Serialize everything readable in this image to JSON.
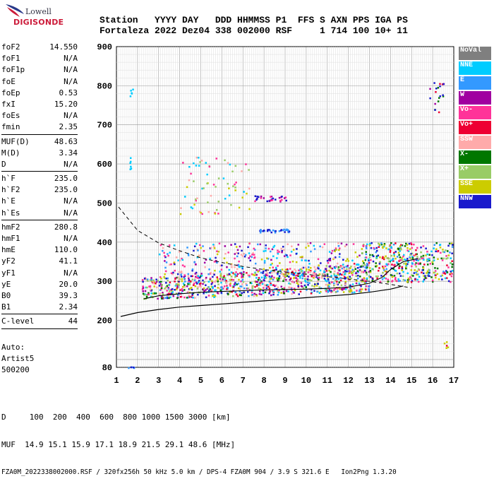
{
  "logo": {
    "line1": "Lowell",
    "line2": "DIGISONDE"
  },
  "header": {
    "labels": "Station   YYYY DAY   DDD HHMMSS P1  FFS S AXN PPS IGA PS",
    "values": "Fortaleza 2022 Dez04 338 002000 RSF     1 714 100 10+ 11"
  },
  "params": [
    {
      "label": "foF2",
      "value": "14.550"
    },
    {
      "label": "foF1",
      "value": "N/A"
    },
    {
      "label": "foF1p",
      "value": "N/A"
    },
    {
      "label": "foE",
      "value": "N/A"
    },
    {
      "label": "foEp",
      "value": "0.53"
    },
    {
      "label": "fxI",
      "value": "15.20"
    },
    {
      "label": "foEs",
      "value": "N/A"
    },
    {
      "label": "fmin",
      "value": "2.35"
    },
    {
      "sep": true
    },
    {
      "label": "MUF(D)",
      "value": "48.63"
    },
    {
      "label": "M(D)",
      "value": "3.34"
    },
    {
      "label": "D",
      "value": "N/A"
    },
    {
      "sep": true
    },
    {
      "label": "h`F",
      "value": "235.0"
    },
    {
      "label": "h`F2",
      "value": "235.0"
    },
    {
      "label": "h`E",
      "value": "N/A"
    },
    {
      "label": "h`Es",
      "value": "N/A"
    },
    {
      "sep": true
    },
    {
      "label": "hmF2",
      "value": "280.8"
    },
    {
      "label": "hmF1",
      "value": "N/A"
    },
    {
      "label": "hmE",
      "value": "110.0"
    },
    {
      "label": "yF2",
      "value": "41.1"
    },
    {
      "label": "yF1",
      "value": "N/A"
    },
    {
      "label": "yE",
      "value": "20.0"
    },
    {
      "label": "B0",
      "value": "39.3"
    },
    {
      "label": "B1",
      "value": "2.34"
    },
    {
      "sep": true
    },
    {
      "label": "C-level",
      "value": "44"
    },
    {
      "sep": true
    }
  ],
  "auto": {
    "line1": "Auto:",
    "line2": "Artist5",
    "line3": "500200"
  },
  "legend": [
    {
      "label": "NoVal",
      "color": "#7f7f7f"
    },
    {
      "label": "NNE",
      "color": "#00ccff"
    },
    {
      "label": "E",
      "color": "#3399ff"
    },
    {
      "label": "W",
      "color": "#a000a0"
    },
    {
      "label": "Vo-",
      "color": "#ff3399"
    },
    {
      "label": "Vo+",
      "color": "#ee0033"
    },
    {
      "label": "SSW",
      "color": "#ffaaaa"
    },
    {
      "label": "X-",
      "color": "#007700"
    },
    {
      "label": "X+",
      "color": "#99cc66"
    },
    {
      "label": "SSE",
      "color": "#cccc00"
    },
    {
      "label": "NNW",
      "color": "#1a1acc"
    }
  ],
  "footer": {
    "line1": "D     100  200  400  600  800 1000 1500 3000 [km]",
    "line2": "MUF  14.9 15.1 15.9 17.1 18.9 21.5 29.1 48.6 [MHz]",
    "line3": "FZA0M_2022338002000.RSF / 320fx256h 50 kHz 5.0 km / DPS-4 FZA0M 904 / 3.9 S 321.6 E   Ion2Png 1.3.20"
  },
  "chart_data": {
    "type": "scatter",
    "xlim": [
      1,
      17
    ],
    "ylim": [
      80,
      900
    ],
    "xticks": [
      1,
      2,
      3,
      4,
      5,
      6,
      7,
      8,
      9,
      10,
      11,
      12,
      13,
      14,
      15,
      16,
      17
    ],
    "yticks": [
      80,
      200,
      300,
      400,
      500,
      600,
      700,
      800,
      900
    ],
    "xticks_labels": [
      "1",
      "2",
      "3",
      "4",
      "5",
      "6",
      "7",
      "8",
      "9",
      "10",
      "11",
      "12",
      "13",
      "14",
      "15",
      "16",
      "17"
    ],
    "yticks_labels": [
      "80",
      "200",
      "300",
      "400",
      "500",
      "600",
      "700",
      "800",
      "900"
    ],
    "grid": true,
    "scale": "log-frequency, virtual height",
    "dashed_curve": [
      [
        1.1,
        490
      ],
      [
        2,
        430
      ],
      [
        3,
        398
      ],
      [
        4,
        378
      ],
      [
        5,
        360
      ],
      [
        6,
        348
      ],
      [
        7,
        338
      ],
      [
        8,
        330
      ],
      [
        9,
        324
      ],
      [
        10,
        318
      ],
      [
        11,
        312
      ],
      [
        12,
        306
      ],
      [
        13,
        300
      ],
      [
        14,
        292
      ],
      [
        15,
        283
      ]
    ],
    "profile_curve": [
      [
        1.2,
        210
      ],
      [
        2,
        220
      ],
      [
        3,
        228
      ],
      [
        4,
        234
      ],
      [
        5,
        238
      ],
      [
        6,
        242
      ],
      [
        7,
        246
      ],
      [
        8,
        250
      ],
      [
        9,
        254
      ],
      [
        10,
        258
      ],
      [
        11,
        262
      ],
      [
        12,
        266
      ],
      [
        13,
        272
      ],
      [
        14,
        280
      ],
      [
        14.6,
        288
      ]
    ],
    "trace_lower": [
      [
        2.3,
        255
      ],
      [
        3,
        263
      ],
      [
        4,
        268
      ],
      [
        5,
        272
      ],
      [
        6,
        274
      ],
      [
        7,
        276
      ],
      [
        8,
        278
      ],
      [
        9,
        279
      ],
      [
        10,
        280
      ],
      [
        11,
        282
      ],
      [
        12,
        285
      ],
      [
        13,
        295
      ],
      [
        13.6,
        310
      ],
      [
        14,
        330
      ],
      [
        14.6,
        350
      ],
      [
        15.3,
        358
      ]
    ],
    "clusters": [
      {
        "x": [
          2.2,
          13.0
        ],
        "y": [
          255,
          330
        ],
        "colors": [
          "#00ccff",
          "#3399ff",
          "#ff3399",
          "#ee0033",
          "#a000a0",
          "#007700",
          "#99cc66",
          "#cccc00",
          "#1a1acc",
          "#ffaaaa"
        ],
        "n": 900,
        "rising": true
      },
      {
        "x": [
          3.0,
          12.5
        ],
        "y": [
          315,
          400
        ],
        "colors": [
          "#00ccff",
          "#3399ff",
          "#ff3399",
          "#a000a0",
          "#cccc00",
          "#1a1acc",
          "#ffaaaa"
        ],
        "n": 320,
        "rising": false
      },
      {
        "x": [
          12.6,
          16.9
        ],
        "y": [
          300,
          400
        ],
        "colors": [
          "#00ccff",
          "#3399ff",
          "#ee0033",
          "#99cc66",
          "#cccc00",
          "#007700",
          "#ff3399",
          "#1a1acc"
        ],
        "n": 420,
        "rising": false
      },
      {
        "x": [
          4.0,
          7.3
        ],
        "y": [
          470,
          620
        ],
        "colors": [
          "#cccc00",
          "#99cc66",
          "#ffaaaa",
          "#ff3399",
          "#00ccff"
        ],
        "n": 70,
        "rising": false
      },
      {
        "x": [
          7.5,
          9.1
        ],
        "y": [
          505,
          520
        ],
        "colors": [
          "#a000a0",
          "#ff3399",
          "#1a1acc"
        ],
        "n": 30,
        "rising": false
      },
      {
        "x": [
          7.7,
          9.2
        ],
        "y": [
          425,
          435
        ],
        "colors": [
          "#1a1acc",
          "#3399ff"
        ],
        "n": 30,
        "rising": false
      },
      {
        "x": [
          15.7,
          16.6
        ],
        "y": [
          730,
          810
        ],
        "colors": [
          "#007700",
          "#1a1acc",
          "#a000a0",
          "#ee0033"
        ],
        "n": 20,
        "rising": false
      },
      {
        "x": [
          1.6,
          1.75
        ],
        "y": [
          580,
          620
        ],
        "colors": [
          "#00ccff"
        ],
        "n": 6,
        "rising": false
      },
      {
        "x": [
          1.6,
          1.75
        ],
        "y": [
          770,
          800
        ],
        "colors": [
          "#00ccff"
        ],
        "n": 5,
        "rising": false
      },
      {
        "x": [
          1.4,
          1.8
        ],
        "y": [
          80,
          83
        ],
        "colors": [
          "#3399ff",
          "#1a1acc"
        ],
        "n": 6,
        "rising": false
      },
      {
        "x": [
          16.5,
          16.7
        ],
        "y": [
          120,
          160
        ],
        "colors": [
          "#007700",
          "#cccc00",
          "#ee0033"
        ],
        "n": 5,
        "rising": false
      }
    ]
  }
}
